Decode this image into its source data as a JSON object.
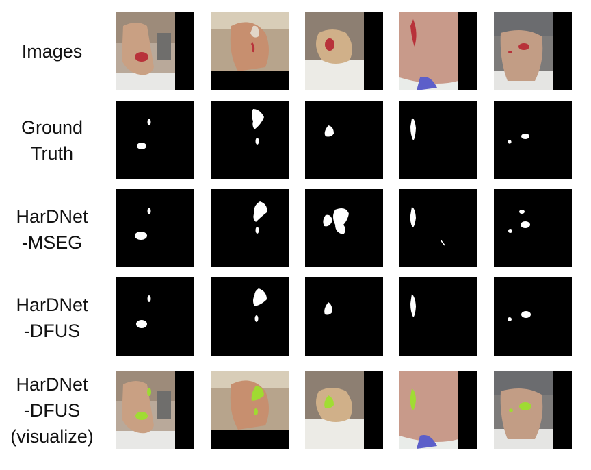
{
  "row_labels": {
    "images": [
      "Images"
    ],
    "ground_truth": [
      "Ground",
      "Truth"
    ],
    "mseg": [
      "HarDNet",
      "-MSEG"
    ],
    "dfus": [
      "HarDNet",
      "-DFUS"
    ],
    "dfus_vis": [
      "HarDNet",
      "-DFUS",
      "(visualize)"
    ]
  },
  "colors": {
    "mask_background": "#000000",
    "mask_foreground": "#ffffff",
    "overlay": "#9be22a",
    "wound": "#b8323a"
  },
  "content": {
    "columns": 5,
    "rows": [
      "images",
      "ground_truth",
      "mseg",
      "dfus",
      "dfus_vis"
    ],
    "tile_kinds": [
      "foot-photo",
      "binary-mask",
      "binary-mask",
      "binary-mask",
      "overlay-photo"
    ]
  }
}
